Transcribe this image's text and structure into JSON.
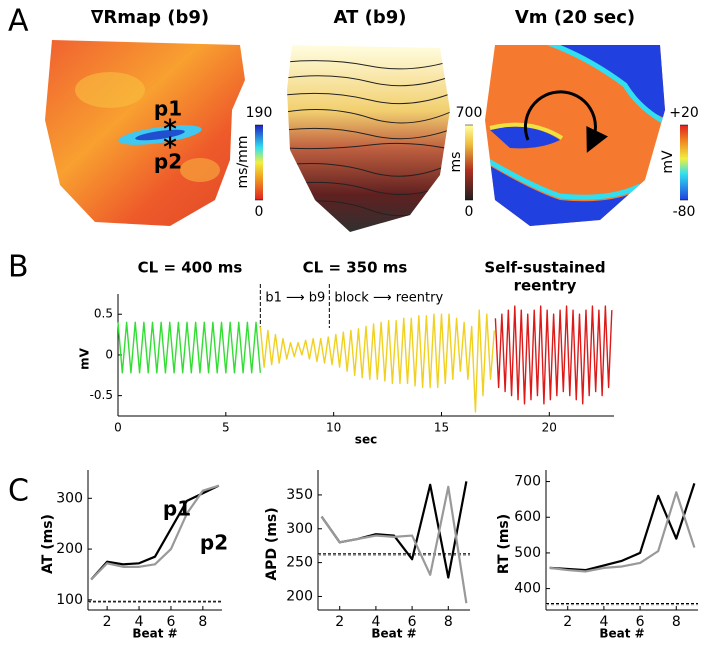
{
  "panel_labels": [
    "A",
    "B",
    "C"
  ],
  "maps": [
    {
      "title": "∇Rmap (b9)",
      "colorbar": {
        "ticks": [
          190,
          0
        ],
        "label": "ms/mm"
      },
      "annotations": [
        "p1",
        "*",
        "*",
        "p2"
      ]
    },
    {
      "title": "AT (b9)",
      "colorbar": {
        "ticks": [
          700,
          0
        ],
        "label": "ms"
      }
    },
    {
      "title": "Vm (20 sec)",
      "colorbar": {
        "ticks": [
          {
            "value": 20,
            "label": "+20"
          },
          -80
        ],
        "label": "mV"
      }
    }
  ],
  "chart_data": [
    {
      "type": "line",
      "xlabel": "sec",
      "ylabel": "mV",
      "xlim": [
        0,
        23
      ],
      "xticks": [
        0,
        5,
        10,
        15,
        20
      ],
      "ylim": [
        -0.75,
        0.65
      ],
      "yticks": [
        -0.5,
        0,
        0.5
      ],
      "annotations": [
        "CL = 400 ms",
        "CL = 350 ms",
        "Self-sustained",
        "reentry"
      ],
      "markers": [
        {
          "x": 6.6,
          "label": "b1 ⟶ b9"
        },
        {
          "x": 9.8,
          "label": "block ⟶ reentry"
        }
      ],
      "series": [
        {
          "color": "#33dd33",
          "x": [
            0,
            0.2,
            0.4,
            0.6,
            0.8,
            1,
            1.2,
            1.4,
            1.6,
            1.8,
            2,
            2.2,
            2.4,
            2.6,
            2.8,
            3,
            3.2,
            3.4,
            3.6,
            3.8,
            4,
            4.2,
            4.4,
            4.6,
            4.8,
            5,
            5.2,
            5.4,
            5.6,
            5.8,
            6,
            6.2,
            6.4,
            6.6
          ],
          "values": [
            0.4,
            -0.22,
            0.4,
            -0.22,
            0.4,
            -0.22,
            0.4,
            -0.22,
            0.4,
            -0.22,
            0.4,
            -0.22,
            0.4,
            -0.22,
            0.4,
            -0.22,
            0.4,
            -0.22,
            0.4,
            -0.22,
            0.4,
            -0.22,
            0.4,
            -0.22,
            0.4,
            -0.22,
            0.4,
            -0.22,
            0.4,
            -0.22,
            0.4,
            -0.22,
            0.4,
            -0.22
          ]
        },
        {
          "color": "#f0d020",
          "x": [
            6.6,
            6.775,
            6.95,
            7.125,
            7.3,
            7.475,
            7.65,
            7.825,
            8.0,
            8.175,
            8.35,
            8.525,
            8.7,
            8.875,
            9.05,
            9.225,
            9.4,
            9.575,
            9.75,
            9.925,
            10.1,
            10.275,
            10.45,
            10.625,
            10.8,
            10.975,
            11.15,
            11.325,
            11.5,
            11.675,
            11.85,
            12.025,
            12.2,
            12.375,
            12.55,
            12.725,
            12.9,
            13.075,
            13.25,
            13.425,
            13.6,
            13.775,
            13.95,
            14.125,
            14.3,
            14.475,
            14.65,
            14.825,
            15.0,
            15.175,
            15.35,
            15.525,
            15.7,
            15.875,
            16.05,
            16.225,
            16.4,
            16.575,
            16.75,
            16.925,
            17.1,
            17.275,
            17.45
          ],
          "values": [
            0.35,
            -0.15,
            0.3,
            -0.12,
            0.25,
            -0.1,
            0.2,
            -0.05,
            0.15,
            -0.02,
            0.15,
            0.0,
            0.18,
            -0.05,
            0.2,
            -0.08,
            0.2,
            -0.1,
            0.22,
            -0.12,
            0.25,
            -0.15,
            0.28,
            -0.2,
            0.3,
            -0.25,
            0.32,
            -0.28,
            0.35,
            -0.3,
            0.38,
            -0.3,
            0.4,
            -0.32,
            0.42,
            -0.35,
            0.42,
            -0.35,
            0.45,
            -0.35,
            0.45,
            -0.38,
            0.48,
            -0.4,
            0.48,
            -0.4,
            0.5,
            -0.4,
            0.5,
            -0.35,
            0.5,
            -0.3,
            0.45,
            -0.2,
            0.4,
            -0.3,
            0.35,
            -0.7,
            0.55,
            -0.5,
            0.5,
            -0.3,
            0.3
          ]
        },
        {
          "color": "#dd1a1a",
          "x": [
            17.5,
            17.65,
            17.8,
            17.95,
            18.1,
            18.25,
            18.4,
            18.55,
            18.7,
            18.85,
            19.0,
            19.15,
            19.3,
            19.45,
            19.6,
            19.75,
            19.9,
            20.05,
            20.2,
            20.35,
            20.5,
            20.65,
            20.8,
            20.95,
            21.1,
            21.25,
            21.4,
            21.55,
            21.7,
            21.85,
            22.0,
            22.15,
            22.3,
            22.45,
            22.6,
            22.75,
            22.9
          ],
          "values": [
            0.45,
            -0.4,
            0.5,
            -0.45,
            0.55,
            -0.5,
            0.6,
            -0.55,
            0.55,
            -0.6,
            0.5,
            -0.55,
            0.55,
            -0.5,
            0.6,
            -0.6,
            0.55,
            -0.55,
            0.5,
            -0.5,
            0.55,
            -0.45,
            0.6,
            -0.5,
            0.55,
            -0.55,
            0.5,
            -0.6,
            0.55,
            -0.5,
            0.6,
            -0.45,
            0.55,
            -0.5,
            0.6,
            -0.4,
            0.55
          ]
        }
      ]
    },
    {
      "type": "line",
      "xlabel": "Beat #",
      "ylabel": "AT (ms)",
      "xlim": [
        0.8,
        9.2
      ],
      "xticks": [
        2,
        4,
        6,
        8
      ],
      "ylim": [
        80,
        340
      ],
      "yticks": [
        100,
        200,
        300
      ],
      "annotations": [
        "p1",
        "p2"
      ],
      "baselines": [
        97,
        95
      ],
      "series": [
        {
          "color": "#000000",
          "x": [
            1,
            2,
            3,
            4,
            5,
            6,
            7,
            8,
            9
          ],
          "values": [
            140,
            175,
            170,
            172,
            185,
            240,
            295,
            310,
            325
          ]
        },
        {
          "color": "#999999",
          "x": [
            1,
            2,
            3,
            4,
            5,
            6,
            7,
            8,
            9
          ],
          "values": [
            140,
            172,
            165,
            165,
            170,
            200,
            270,
            315,
            325
          ]
        }
      ]
    },
    {
      "type": "line",
      "xlabel": "Beat #",
      "ylabel": "APD (ms)",
      "xlim": [
        0.8,
        9.2
      ],
      "xticks": [
        2,
        4,
        6,
        8
      ],
      "ylim": [
        180,
        375
      ],
      "yticks": [
        200,
        250,
        300,
        350
      ],
      "baselines": [
        263,
        261
      ],
      "series": [
        {
          "color": "#000000",
          "x": [
            1,
            2,
            3,
            4,
            5,
            6,
            7,
            8,
            9
          ],
          "values": [
            318,
            280,
            285,
            292,
            290,
            255,
            365,
            228,
            370
          ]
        },
        {
          "color": "#999999",
          "x": [
            1,
            2,
            3,
            4,
            5,
            6,
            7,
            8,
            9
          ],
          "values": [
            318,
            280,
            285,
            290,
            288,
            290,
            232,
            362,
            190
          ]
        }
      ]
    },
    {
      "type": "line",
      "xlabel": "Beat #",
      "ylabel": "RT (ms)",
      "xlim": [
        0.8,
        9.2
      ],
      "xticks": [
        2,
        4,
        6,
        8
      ],
      "ylim": [
        340,
        710
      ],
      "yticks": [
        400,
        500,
        600,
        700
      ],
      "baselines": [
        358,
        355
      ],
      "series": [
        {
          "color": "#000000",
          "x": [
            1,
            2,
            3,
            4,
            5,
            6,
            7,
            8,
            9
          ],
          "values": [
            458,
            455,
            452,
            465,
            478,
            500,
            660,
            540,
            695
          ]
        },
        {
          "color": "#999999",
          "x": [
            1,
            2,
            3,
            4,
            5,
            6,
            7,
            8,
            9
          ],
          "values": [
            458,
            452,
            448,
            458,
            462,
            472,
            505,
            670,
            515
          ]
        }
      ]
    }
  ]
}
